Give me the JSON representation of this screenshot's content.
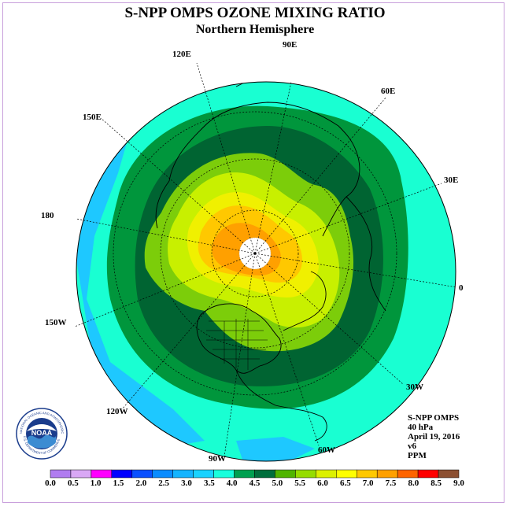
{
  "header": {
    "title": "S-NPP OMPS OZONE MIXING RATIO",
    "subtitle": "Northern Hemisphere"
  },
  "longitudes": [
    "90E",
    "60E",
    "30E",
    "0",
    "30W",
    "60W",
    "90W",
    "120W",
    "150W",
    "180",
    "150E",
    "120E"
  ],
  "info": {
    "line1": "S-NPP OMPS",
    "line2": "40 hPa",
    "line3": "April 19, 2016",
    "line4": "v6",
    "line5": "PPM"
  },
  "logo": {
    "text": "NOAA",
    "ring_text": "NATIONAL OCEANIC AND ATMOSPHERIC ADMINISTRATION",
    "ring_text_bottom": "U.S. DEPARTMENT OF COMMERCE"
  },
  "colorbar": {
    "ticks": [
      "0.0",
      "0.5",
      "1.0",
      "1.5",
      "2.0",
      "2.5",
      "3.0",
      "3.5",
      "4.0",
      "4.5",
      "5.0",
      "5.5",
      "6.0",
      "6.5",
      "7.0",
      "7.5",
      "8.0",
      "8.5",
      "9.0"
    ],
    "colors": [
      "#b07cf0",
      "#d9a8f5",
      "#ff00ff",
      "#0000ff",
      "#0a50ff",
      "#0a8cff",
      "#14b4ff",
      "#19d2ff",
      "#19ffdc",
      "#00a050",
      "#006e3c",
      "#50b400",
      "#96dc00",
      "#dcf000",
      "#ffff00",
      "#ffc800",
      "#ffa000",
      "#ff6400",
      "#ff0000",
      "#8c5032"
    ]
  },
  "map_colors": {
    "c35": "#1ec8ff",
    "c40": "#19ffd2",
    "c45": "#00963c",
    "c50": "#006432",
    "c55": "#7ccd0a",
    "c60": "#c8f000",
    "c65": "#f0f000",
    "c70": "#ffc800",
    "c75": "#ffa000",
    "nodata": "#ffffff"
  }
}
